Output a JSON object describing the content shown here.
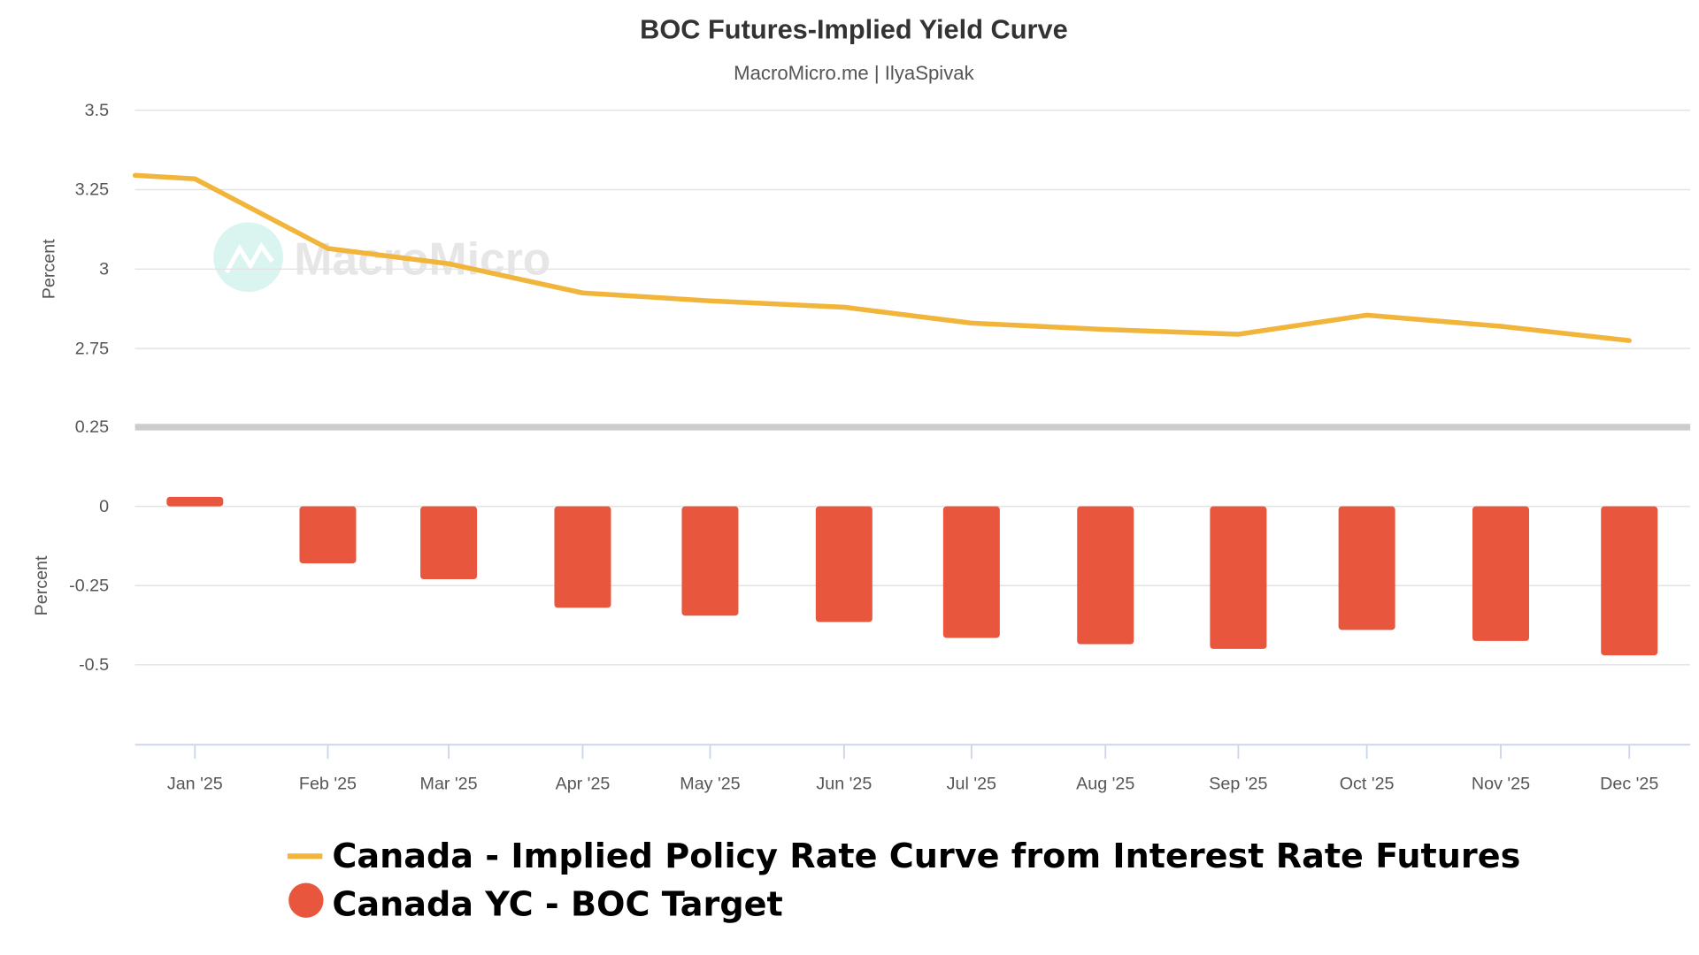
{
  "chart_data": {
    "type": "line+bar",
    "title": "BOC Futures-Implied Yield Curve",
    "subtitle": "MacroMicro.me | IlyaSpivak",
    "watermark": "MacroMicro",
    "categories": [
      "Jan '25",
      "Feb '25",
      "Mar '25",
      "Apr '25",
      "May '25",
      "Jun '25",
      "Jul '25",
      "Aug '25",
      "Sep '25",
      "Oct '25",
      "Nov '25",
      "Dec '25"
    ],
    "panels": [
      {
        "ylabel": "Percent",
        "ylim": [
          2.6,
          3.5
        ],
        "yticks": [
          "3.5",
          "3.25",
          "3",
          "2.75"
        ],
        "grid": true
      },
      {
        "ylabel": "Percent",
        "ylim": [
          -0.75,
          0.25
        ],
        "yticks": [
          "0.25",
          "0",
          "-0.25",
          "-0.5"
        ],
        "grid": true
      }
    ],
    "series": [
      {
        "name": "Canada - Implied Policy Rate Curve from Interest Rate Futures",
        "type": "line",
        "panel": 0,
        "color": "#f2b53c",
        "start_value": 3.295,
        "values": [
          3.284,
          3.065,
          3.017,
          2.925,
          2.9,
          2.88,
          2.83,
          2.81,
          2.795,
          2.855,
          2.82,
          2.775
        ]
      },
      {
        "name": "Canada YC - BOC Target",
        "type": "bar",
        "panel": 1,
        "color": "#e9563e",
        "values": [
          0.03,
          -0.18,
          -0.23,
          -0.32,
          -0.345,
          -0.365,
          -0.415,
          -0.435,
          -0.45,
          -0.39,
          -0.425,
          -0.47
        ]
      }
    ],
    "legend_position": "bottom"
  }
}
